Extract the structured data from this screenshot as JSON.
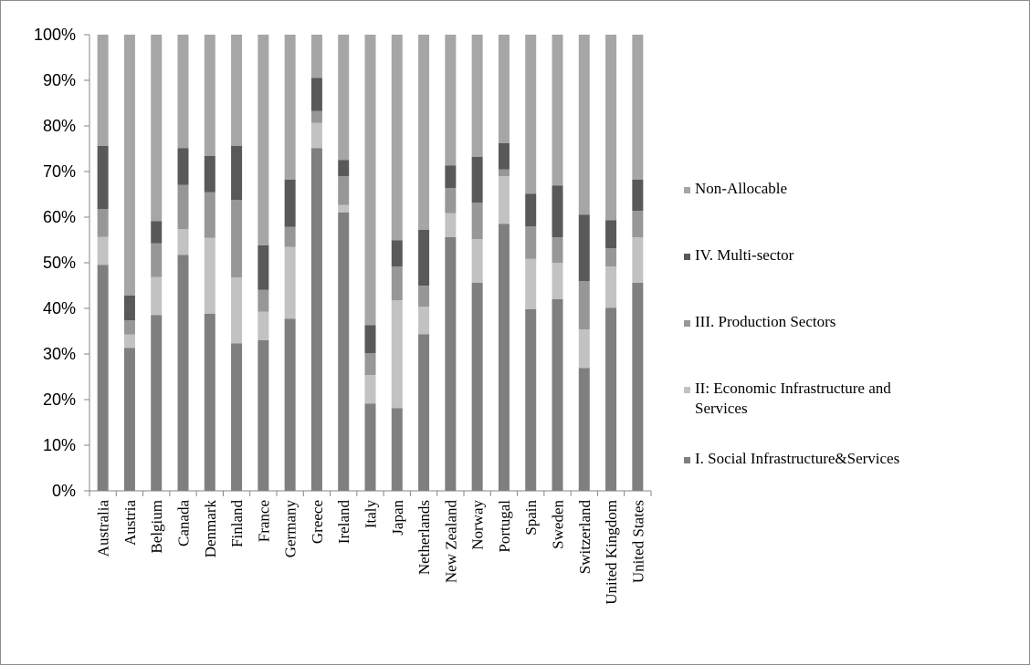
{
  "chart_data": {
    "type": "bar",
    "stacked": true,
    "percent": true,
    "title": "",
    "xlabel": "",
    "ylabel": "",
    "ylim": [
      0,
      100
    ],
    "yticks": [
      "0%",
      "10%",
      "20%",
      "30%",
      "40%",
      "50%",
      "60%",
      "70%",
      "80%",
      "90%",
      "100%"
    ],
    "grid": false,
    "legend_position": "right",
    "categories": [
      "Australia",
      "Austria",
      "Belgium",
      "Canada",
      "Denmark",
      "Finland",
      "France",
      "Germany",
      "Greece",
      "Ireland",
      "Italy",
      "Japan",
      "Netherlands",
      "New Zealand",
      "Norway",
      "Portugal",
      "Spain",
      "Sweden",
      "Switzerland",
      "United Kingdom",
      "United States"
    ],
    "series": [
      {
        "name": "I. Social Infrastructure&Services",
        "color": "#7f7f7f",
        "values": [
          49.5,
          31.3,
          38.5,
          51.7,
          38.8,
          32.3,
          33.0,
          37.7,
          75.1,
          61.0,
          19.1,
          18.1,
          34.3,
          55.6,
          45.6,
          58.5,
          39.8,
          42.0,
          26.9,
          40.1,
          45.6
        ]
      },
      {
        "name": "II: Economic Infrastructure and Services",
        "color": "#c2c2c2",
        "values": [
          6.2,
          3.0,
          8.4,
          5.7,
          16.7,
          14.5,
          6.3,
          15.8,
          5.6,
          1.7,
          6.3,
          23.7,
          6.1,
          5.3,
          9.6,
          10.5,
          11.1,
          8.0,
          8.5,
          9.1,
          10.0
        ]
      },
      {
        "name": "III. Production Sectors",
        "color": "#979797",
        "values": [
          6.1,
          3.1,
          7.4,
          9.7,
          10.0,
          17.0,
          4.8,
          4.4,
          2.6,
          6.3,
          4.8,
          7.4,
          4.6,
          5.5,
          8.0,
          1.5,
          7.1,
          5.6,
          10.6,
          4.0,
          5.8
        ]
      },
      {
        "name": "IV. Multi-sector",
        "color": "#595959",
        "values": [
          13.8,
          5.4,
          4.8,
          8.0,
          7.9,
          11.8,
          9.7,
          10.3,
          7.2,
          3.5,
          6.1,
          5.7,
          12.2,
          4.9,
          10.0,
          5.7,
          7.1,
          11.3,
          14.5,
          6.1,
          6.8
        ]
      },
      {
        "name": "Non-Allocable",
        "color": "#a6a6a6",
        "values": [
          24.4,
          57.2,
          40.9,
          24.9,
          26.6,
          24.4,
          46.2,
          31.8,
          9.5,
          27.5,
          63.7,
          45.1,
          42.8,
          28.7,
          26.8,
          23.8,
          34.9,
          33.1,
          39.5,
          40.7,
          31.8
        ]
      }
    ]
  }
}
